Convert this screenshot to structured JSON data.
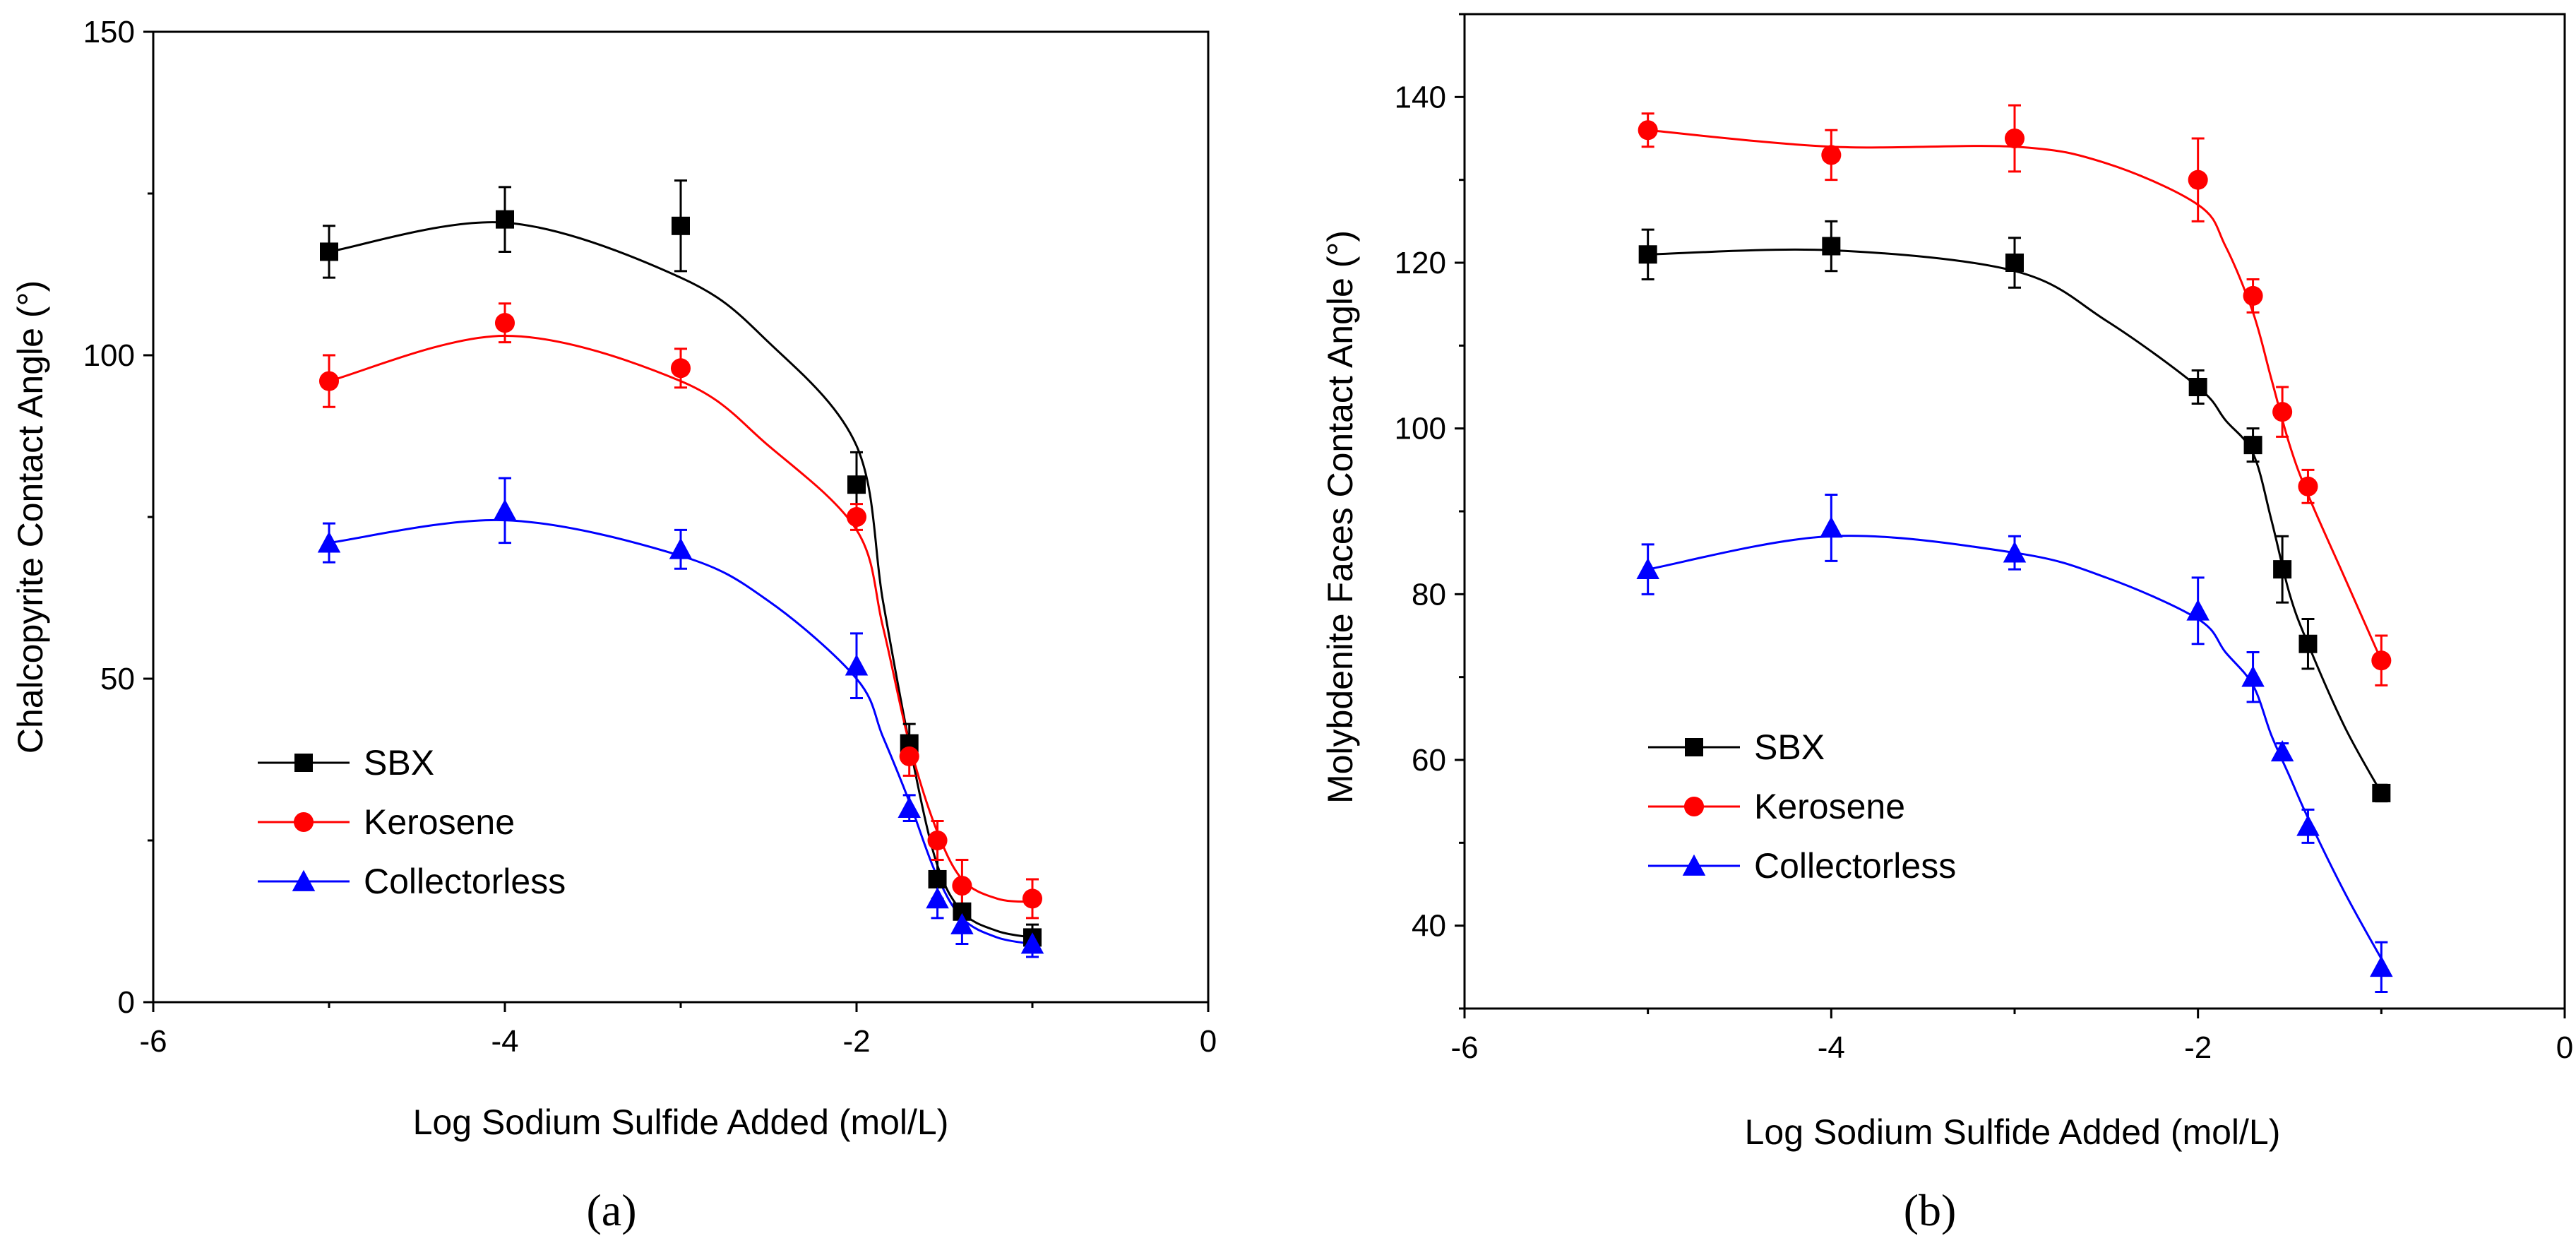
{
  "chart_data": [
    {
      "type": "scatter",
      "panel_label": "(a)",
      "xlabel": "Log Sodium Sulfide Added (mol/L)",
      "ylabel": "Chalcopyrite Contact Angle (°)",
      "xlim": [
        -6,
        0
      ],
      "ylim": [
        0,
        150
      ],
      "xticks": [
        -6,
        -4,
        -2,
        0
      ],
      "yticks": [
        0,
        50,
        100,
        150
      ],
      "legend_position": "lower-left",
      "series": [
        {
          "name": "SBX",
          "color": "#000000",
          "marker": "square",
          "x": [
            -5,
            -4,
            -3,
            -2,
            -1.7,
            -1.54,
            -1.4,
            -1
          ],
          "y": [
            116,
            121,
            120,
            80,
            40,
            19,
            14,
            10
          ],
          "err": [
            4,
            5,
            7,
            5,
            3,
            3,
            3,
            2
          ],
          "fit": [
            [
              -5,
              116
            ],
            [
              -4,
              120.5
            ],
            [
              -3,
              112
            ],
            [
              -2.5,
              102
            ],
            [
              -2,
              86
            ],
            [
              -1.85,
              62
            ],
            [
              -1.7,
              40
            ],
            [
              -1.55,
              22
            ],
            [
              -1.4,
              14
            ],
            [
              -1.2,
              11
            ],
            [
              -1,
              10
            ]
          ]
        },
        {
          "name": "Kerosene",
          "color": "#ff0000",
          "marker": "circle",
          "x": [
            -5,
            -4,
            -3,
            -2,
            -1.7,
            -1.54,
            -1.4,
            -1
          ],
          "y": [
            96,
            105,
            98,
            75,
            38,
            25,
            18,
            16
          ],
          "err": [
            4,
            3,
            3,
            2,
            3,
            3,
            4,
            3
          ],
          "fit": [
            [
              -5,
              96
            ],
            [
              -4,
              103
            ],
            [
              -3,
              96
            ],
            [
              -2.5,
              86
            ],
            [
              -2,
              73
            ],
            [
              -1.85,
              58
            ],
            [
              -1.7,
              40
            ],
            [
              -1.55,
              27
            ],
            [
              -1.4,
              19
            ],
            [
              -1.2,
              16
            ],
            [
              -1,
              15.5
            ]
          ]
        },
        {
          "name": "Collectorless",
          "color": "#0000ff",
          "marker": "triangle",
          "x": [
            -5,
            -4,
            -3,
            -2,
            -1.7,
            -1.54,
            -1.4,
            -1
          ],
          "y": [
            71,
            76,
            70,
            52,
            30,
            16,
            12,
            9
          ],
          "err": [
            3,
            5,
            3,
            5,
            2,
            3,
            3,
            2
          ],
          "fit": [
            [
              -5,
              71
            ],
            [
              -4,
              74.5
            ],
            [
              -3,
              69
            ],
            [
              -2.5,
              62
            ],
            [
              -2,
              50
            ],
            [
              -1.85,
              41
            ],
            [
              -1.7,
              31
            ],
            [
              -1.55,
              20
            ],
            [
              -1.4,
              13
            ],
            [
              -1.2,
              10
            ],
            [
              -1,
              9
            ]
          ]
        }
      ]
    },
    {
      "type": "scatter",
      "panel_label": "(b)",
      "xlabel": "Log Sodium Sulfide Added (mol/L)",
      "ylabel": "Molybdenite Faces Contact Angle (°)",
      "xlim": [
        -6,
        0
      ],
      "ylim": [
        30,
        150
      ],
      "xticks": [
        -6,
        -4,
        -2,
        0
      ],
      "yticks": [
        40,
        60,
        80,
        100,
        120,
        140
      ],
      "legend_position": "lower-left",
      "series": [
        {
          "name": "SBX",
          "color": "#000000",
          "marker": "square",
          "x": [
            -5,
            -4,
            -3,
            -2,
            -1.7,
            -1.54,
            -1.4,
            -1
          ],
          "y": [
            121,
            122,
            120,
            105,
            98,
            83,
            74,
            56
          ],
          "err": [
            3,
            3,
            3,
            2,
            2,
            4,
            3,
            1
          ],
          "fit": [
            [
              -5,
              121
            ],
            [
              -4,
              121.5
            ],
            [
              -3,
              119
            ],
            [
              -2.5,
              113
            ],
            [
              -2,
              105
            ],
            [
              -1.85,
              101
            ],
            [
              -1.7,
              97
            ],
            [
              -1.6,
              89
            ],
            [
              -1.5,
              80
            ],
            [
              -1.4,
              74
            ],
            [
              -1.2,
              64
            ],
            [
              -1,
              56
            ]
          ]
        },
        {
          "name": "Kerosene",
          "color": "#ff0000",
          "marker": "circle",
          "x": [
            -5,
            -4,
            -3,
            -2,
            -1.7,
            -1.54,
            -1.4,
            -1
          ],
          "y": [
            136,
            133,
            135,
            130,
            116,
            102,
            93,
            72
          ],
          "err": [
            2,
            3,
            4,
            5,
            2,
            3,
            2,
            3
          ],
          "fit": [
            [
              -5,
              136
            ],
            [
              -4,
              134
            ],
            [
              -3,
              134
            ],
            [
              -2.5,
              132
            ],
            [
              -2,
              127
            ],
            [
              -1.85,
              122
            ],
            [
              -1.7,
              114
            ],
            [
              -1.6,
              106
            ],
            [
              -1.5,
              98
            ],
            [
              -1.4,
              92
            ],
            [
              -1.2,
              82
            ],
            [
              -1,
              72
            ]
          ]
        },
        {
          "name": "Collectorless",
          "color": "#0000ff",
          "marker": "triangle",
          "x": [
            -5,
            -4,
            -3,
            -2,
            -1.7,
            -1.54,
            -1.4,
            -1
          ],
          "y": [
            83,
            88,
            85,
            78,
            70,
            61,
            52,
            35
          ],
          "err": [
            3,
            4,
            2,
            4,
            3,
            1,
            2,
            3
          ],
          "fit": [
            [
              -5,
              83
            ],
            [
              -4,
              87
            ],
            [
              -3,
              85
            ],
            [
              -2.5,
              82
            ],
            [
              -2,
              77
            ],
            [
              -1.85,
              73
            ],
            [
              -1.7,
              69
            ],
            [
              -1.6,
              63
            ],
            [
              -1.5,
              58
            ],
            [
              -1.4,
              53
            ],
            [
              -1.2,
              44
            ],
            [
              -1,
              36
            ]
          ]
        }
      ]
    }
  ]
}
